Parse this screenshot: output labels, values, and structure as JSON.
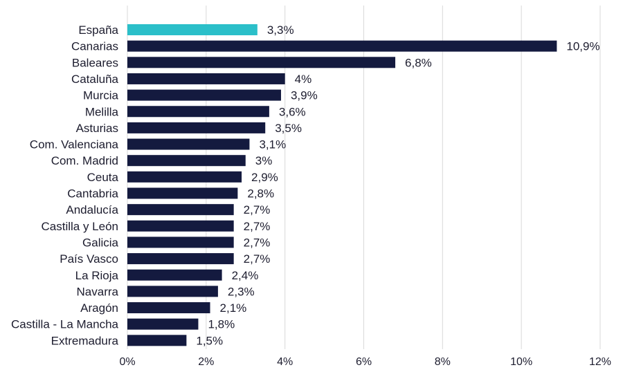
{
  "chart_data": {
    "type": "bar",
    "orientation": "horizontal",
    "categories": [
      "España",
      "Canarias",
      "Baleares",
      "Cataluña",
      "Murcia",
      "Melilla",
      "Asturias",
      "Com. Valenciana",
      "Com. Madrid",
      "Ceuta",
      "Cantabria",
      "Andalucía",
      "Castilla y León",
      "Galicia",
      "País Vasco",
      "La Rioja",
      "Navarra",
      "Aragón",
      "Castilla - La Mancha",
      "Extremadura"
    ],
    "values": [
      3.3,
      10.9,
      6.8,
      4.0,
      3.9,
      3.6,
      3.5,
      3.1,
      3.0,
      2.9,
      2.8,
      2.7,
      2.7,
      2.7,
      2.7,
      2.4,
      2.3,
      2.1,
      1.8,
      1.5
    ],
    "value_labels": [
      "3,3%",
      "10,9%",
      "6,8%",
      "4%",
      "3,9%",
      "3,6%",
      "3,5%",
      "3,1%",
      "3%",
      "2,9%",
      "2,8%",
      "2,7%",
      "2,7%",
      "2,7%",
      "2,7%",
      "2,4%",
      "2,3%",
      "2,1%",
      "1,8%",
      "1,5%"
    ],
    "xlim": [
      0,
      12
    ],
    "xticks": [
      0,
      2,
      4,
      6,
      8,
      10,
      12
    ],
    "xtick_labels": [
      "0%",
      "2%",
      "4%",
      "6%",
      "8%",
      "10%",
      "12%"
    ],
    "grid": true,
    "colors": {
      "highlight": "#2bbfc9",
      "bar": "#141a3f",
      "grid": "#d9d9d9",
      "text": "#1c1c2e"
    },
    "highlight_index": 0,
    "title": "",
    "xlabel": "",
    "ylabel": ""
  }
}
